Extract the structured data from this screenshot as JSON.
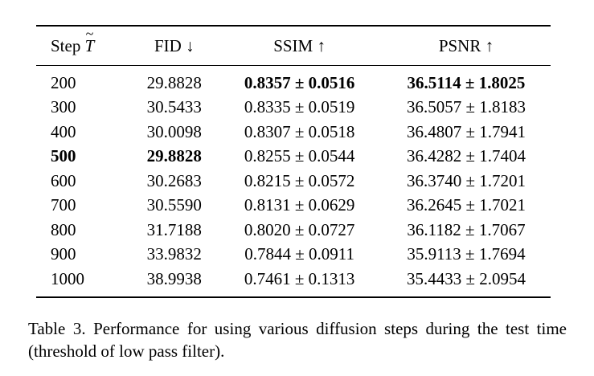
{
  "table": {
    "headers": {
      "step": "Step",
      "step_symbol": "T",
      "fid": "FID ↓",
      "ssim": "SSIM ↑",
      "psnr": "PSNR ↑"
    },
    "rows": [
      {
        "step": "200",
        "fid": "29.8828",
        "ssim": "0.8357 ± 0.0516",
        "psnr": "36.5114 ± 1.8025",
        "bold": [
          "ssim",
          "psnr"
        ]
      },
      {
        "step": "300",
        "fid": "30.5433",
        "ssim": "0.8335 ± 0.0519",
        "psnr": "36.5057 ± 1.8183",
        "bold": []
      },
      {
        "step": "400",
        "fid": "30.0098",
        "ssim": "0.8307 ± 0.0518",
        "psnr": "36.4807 ± 1.7941",
        "bold": []
      },
      {
        "step": "500",
        "fid": "29.8828",
        "ssim": "0.8255 ± 0.0544",
        "psnr": "36.4282 ± 1.7404",
        "bold": [
          "step",
          "fid"
        ]
      },
      {
        "step": "600",
        "fid": "30.2683",
        "ssim": "0.8215 ± 0.0572",
        "psnr": "36.3740 ± 1.7201",
        "bold": []
      },
      {
        "step": "700",
        "fid": "30.5590",
        "ssim": "0.8131 ± 0.0629",
        "psnr": "36.2645 ± 1.7021",
        "bold": []
      },
      {
        "step": "800",
        "fid": "31.7188",
        "ssim": "0.8020 ± 0.0727",
        "psnr": "36.1182 ± 1.7067",
        "bold": []
      },
      {
        "step": "900",
        "fid": "33.9832",
        "ssim": "0.7844 ± 0.0911",
        "psnr": "35.9113 ± 1.7694",
        "bold": []
      },
      {
        "step": "1000",
        "fid": "38.9938",
        "ssim": "0.7461 ± 0.1313",
        "psnr": "35.4433 ± 2.0954",
        "bold": []
      }
    ]
  },
  "caption": "Table 3. Performance for using various diffusion steps during the test time (threshold of low pass filter)."
}
